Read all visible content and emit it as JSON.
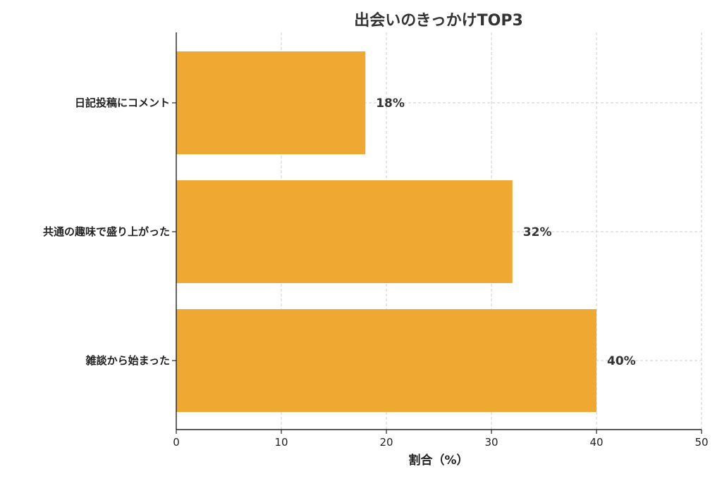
{
  "chart_data": {
    "type": "bar",
    "orientation": "horizontal",
    "title": "出会いのきっかけTOP3",
    "xlabel": "割合（%）",
    "ylabel": "",
    "categories": [
      "日記投稿にコメント",
      "共通の趣味で盛り上がった",
      "雑談から始まった"
    ],
    "values": [
      18,
      32,
      40
    ],
    "data_labels": [
      "18%",
      "32%",
      "40%"
    ],
    "xlim": [
      0,
      50
    ],
    "xticks": [
      0,
      10,
      20,
      30,
      40,
      50
    ],
    "grid": true,
    "legend": "none",
    "colors": {
      "bar": "#EFA933",
      "grid": "#cccccc",
      "axis": "#222222"
    }
  }
}
